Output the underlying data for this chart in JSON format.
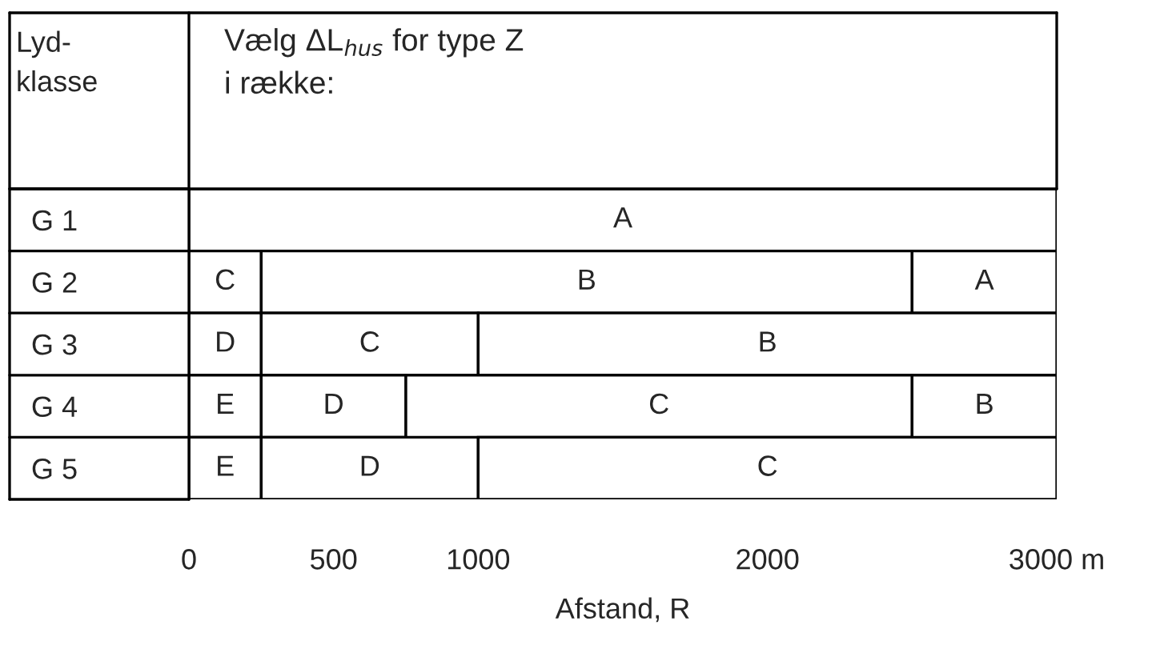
{
  "chart_data": {
    "type": "bar",
    "orientation": "horizontal",
    "stacked": true,
    "title": "Vælg ΔL$_{hus}$ for type Z\ni række:",
    "ylabel": "Lyd-\nklasse",
    "xlabel": "Afstand, R",
    "categories": [
      "G 1",
      "G 2",
      "G 3",
      "G 4",
      "G 5"
    ],
    "series": [
      {
        "color": "#ffffff",
        "values": [
          3000,
          250,
          250,
          250,
          250
        ],
        "value_labels": [
          "A",
          "C",
          "D",
          "E",
          "E"
        ]
      },
      {
        "color": "#ffffff",
        "values": [
          null,
          2250,
          750,
          500,
          750
        ],
        "value_labels": [
          null,
          "B",
          "C",
          "D",
          "D"
        ]
      },
      {
        "color": "#ffffff",
        "values": [
          null,
          500,
          2000,
          1750,
          2000
        ],
        "value_labels": [
          null,
          "A",
          "B",
          "C",
          "C"
        ]
      },
      {
        "color": "#ffffff",
        "values": [
          null,
          null,
          null,
          500,
          null
        ],
        "value_labels": [
          null,
          null,
          null,
          "B",
          null
        ]
      }
    ],
    "xlim": [
      0,
      3000
    ],
    "xticks": [
      0,
      500,
      1000,
      2000,
      {
        "value": 3000,
        "label": "3000 m"
      }
    ],
    "legend": false
  }
}
